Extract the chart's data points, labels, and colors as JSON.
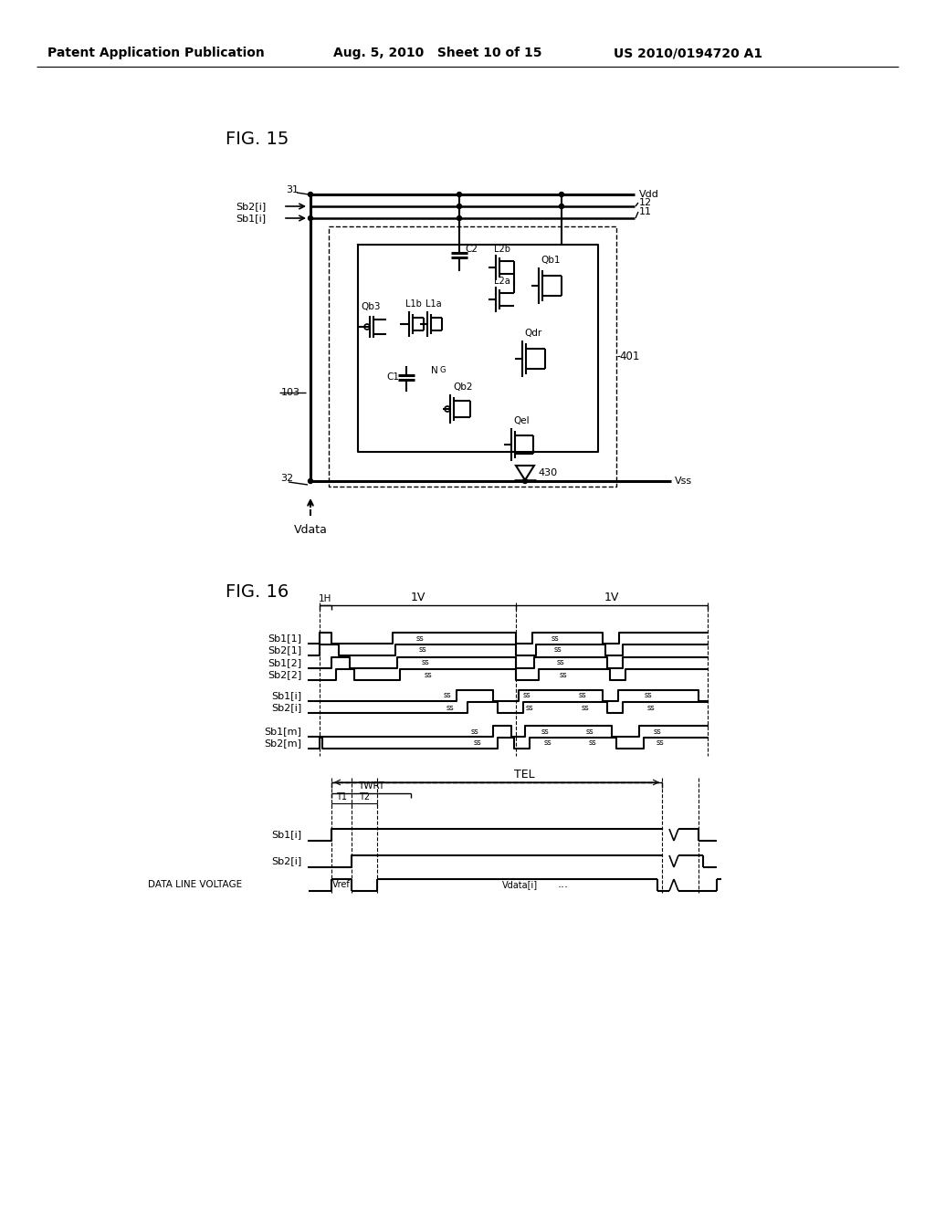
{
  "header_left": "Patent Application Publication",
  "header_center": "Aug. 5, 2010   Sheet 10 of 15",
  "header_right": "US 2010/0194720 A1",
  "fig15_title": "FIG. 15",
  "fig16_title": "FIG. 16",
  "bg_color": "#ffffff"
}
